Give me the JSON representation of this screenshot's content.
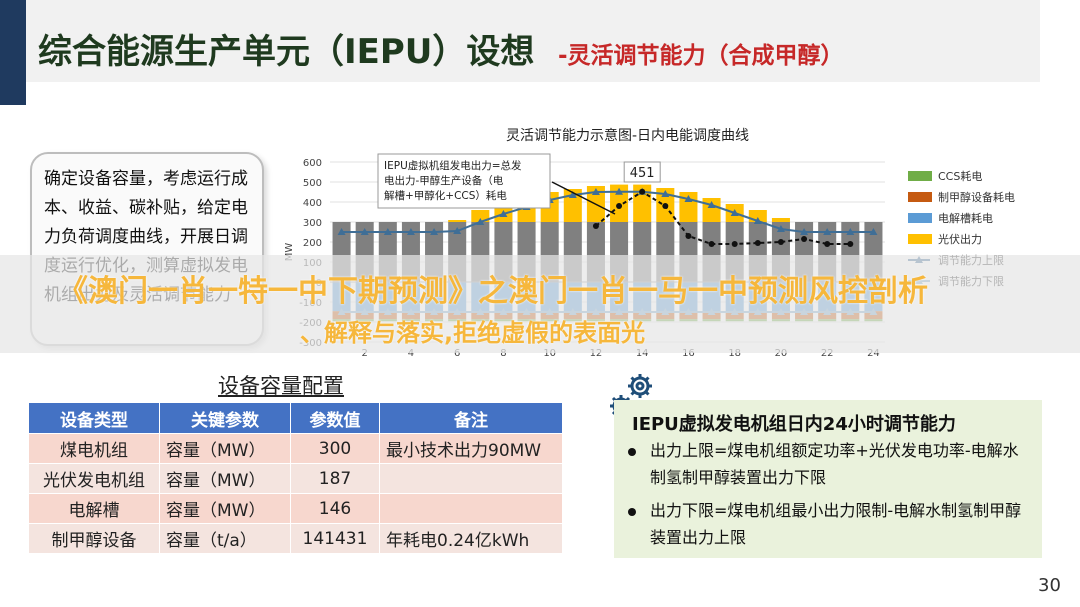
{
  "header": {
    "title": "综合能源生产单元（IEPU）设想",
    "subtitle": "-灵活调节能力（合成甲醇）"
  },
  "left_note": {
    "text": "确定设备容量，考虑运行成本、收益、碳补贴，给定电力负荷调度曲线，开展日调度运行优化，测算虚拟发电机组出力及灵活调节能力"
  },
  "chart_data": {
    "type": "bar",
    "title": "灵活调节能力示意图-日内电能调度曲线",
    "ylabel": "MW",
    "ylim": [
      -300,
      600
    ],
    "yticks": [
      600,
      500,
      400,
      300,
      200,
      100,
      0,
      -100,
      -200,
      -300
    ],
    "x": [
      1,
      2,
      3,
      4,
      5,
      6,
      7,
      8,
      9,
      10,
      11,
      12,
      13,
      14,
      15,
      16,
      17,
      18,
      19,
      20,
      21,
      22,
      23,
      24
    ],
    "xticks": [
      2,
      4,
      6,
      8,
      10,
      12,
      14,
      16,
      18,
      20,
      22,
      24
    ],
    "colors": {
      "CCS耗电": "#70ad47",
      "制甲醇设备耗电": "#c55a11",
      "电解槽耗电": "#5b9bd5",
      "光伏出力": "#ffc000",
      "煤电出力": "#808080",
      "调节能力上限": "#3f6e96",
      "调节能力下限": "#7fa8c9",
      "IEPU虚拟机组发电出力": "#111111"
    },
    "series": [
      {
        "name": "煤电出力",
        "values": [
          300,
          300,
          300,
          300,
          300,
          300,
          300,
          300,
          300,
          300,
          300,
          300,
          300,
          300,
          300,
          300,
          300,
          300,
          300,
          300,
          300,
          300,
          300,
          300
        ]
      },
      {
        "name": "光伏出力",
        "values": [
          0,
          0,
          0,
          0,
          0,
          10,
          60,
          90,
          120,
          150,
          165,
          180,
          187,
          187,
          170,
          150,
          120,
          90,
          60,
          20,
          0,
          0,
          0,
          0
        ]
      },
      {
        "name": "电解槽耗电",
        "values": [
          -146,
          -146,
          -146,
          -146,
          -146,
          -146,
          -146,
          -146,
          -146,
          -146,
          -146,
          -146,
          -146,
          -146,
          -146,
          -146,
          -146,
          -146,
          -146,
          -146,
          -146,
          -146,
          -146,
          -146
        ]
      },
      {
        "name": "制甲醇设备耗电",
        "values": [
          -40,
          -40,
          -40,
          -40,
          -40,
          -40,
          -40,
          -40,
          -40,
          -40,
          -40,
          -40,
          -40,
          -40,
          -40,
          -40,
          -40,
          -40,
          -40,
          -40,
          -40,
          -40,
          -40,
          -40
        ]
      },
      {
        "name": "CCS耗电",
        "values": [
          -10,
          -10,
          -10,
          -10,
          -10,
          -10,
          -10,
          -10,
          -10,
          -10,
          -10,
          -10,
          -10,
          -10,
          -10,
          -10,
          -10,
          -10,
          -10,
          -10,
          -10,
          -10,
          -10,
          -10
        ]
      },
      {
        "name": "调节能力上限",
        "values": [
          250,
          250,
          250,
          250,
          250,
          255,
          300,
          340,
          375,
          410,
          435,
          450,
          451,
          451,
          440,
          415,
          385,
          345,
          305,
          265,
          250,
          250,
          250,
          250
        ]
      },
      {
        "name": "调节能力下限",
        "values": [
          -150,
          -150,
          -150,
          -150,
          -150,
          -150,
          -150,
          -150,
          -150,
          -150,
          -150,
          -150,
          -150,
          -150,
          -150,
          -150,
          -150,
          -150,
          -150,
          -150,
          -150,
          -150,
          -150,
          -150
        ]
      },
      {
        "name": "IEPU虚拟机组发电出力",
        "values": [
          null,
          null,
          null,
          null,
          null,
          null,
          null,
          null,
          null,
          null,
          null,
          280,
          380,
          451,
          380,
          230,
          190,
          190,
          195,
          200,
          215,
          190,
          190,
          null
        ]
      }
    ],
    "legend": [
      "CCS耗电",
      "制甲醇设备耗电",
      "电解槽耗电",
      "光伏出力",
      "调节能力上限",
      "调节能力下限"
    ],
    "legend_position": "right",
    "annotations": [
      {
        "text": "IEPU虚拟机组发电出力=总发电出力-甲醇生产设备（电解槽+甲醇化+CCS）耗电"
      },
      {
        "text": "451"
      }
    ]
  },
  "watermark": {
    "line1": "《澳门一肖一特一中下期预测》之澳门一肖一马一中预测风控剖析",
    "line2": "、解释与落实,拒绝虚假的表面光"
  },
  "capacity_table": {
    "caption": "设备容量配置",
    "headers": [
      "设备类型",
      "关键参数",
      "参数值",
      "备注"
    ],
    "rows": [
      [
        "煤电机组",
        "容量（MW）",
        "300",
        "最小技术出力90MW"
      ],
      [
        "光伏发电机组",
        "容量（MW）",
        "187",
        ""
      ],
      [
        "电解槽",
        "容量（MW）",
        "146",
        ""
      ],
      [
        "制甲醇设备",
        "容量（t/a）",
        "141431",
        "年耗电0.24亿kWh"
      ]
    ]
  },
  "right_panel": {
    "title": "IEPU虚拟发电机组日内24小时调节能力",
    "bullets": [
      "出力上限=煤电机组额定功率+光伏发电功率-电解水制氢制甲醇装置出力下限",
      "出力下限=煤电机组最小出力限制-电解水制氢制甲醇装置出力上限"
    ]
  },
  "page_number": "30"
}
